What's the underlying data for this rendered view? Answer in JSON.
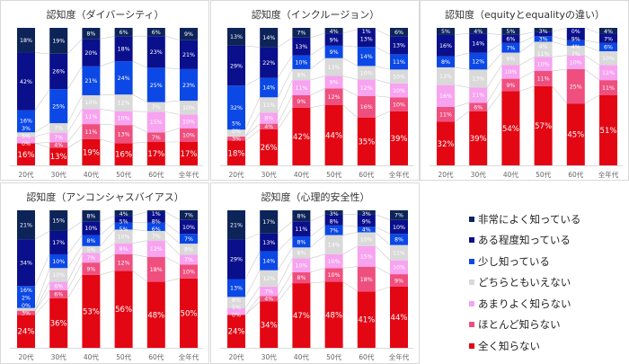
{
  "legend": [
    {
      "name": "非常によく知っている",
      "color": "#0d2459"
    },
    {
      "name": "ある程度知っている",
      "color": "#0a0f8c"
    },
    {
      "name": "少し知っている",
      "color": "#0b48e6"
    },
    {
      "name": "どちらともいえない",
      "color": "#d9d9d9"
    },
    {
      "name": "あまりよく知らない",
      "color": "#f7a3f0"
    },
    {
      "name": "ほとんど知らない",
      "color": "#ef4f7e"
    },
    {
      "name": "全く知らない",
      "color": "#e30613"
    }
  ],
  "chart_data": [
    {
      "type": "bar",
      "stacked": true,
      "title": "認知度（ダイバーシティ）",
      "categories": [
        "20代",
        "30代",
        "40代",
        "50代",
        "60代",
        "全年代"
      ],
      "series": [
        {
          "name": "全く知らない",
          "values": [
            16,
            13,
            19,
            16,
            17,
            17
          ]
        },
        {
          "name": "ほとんど知らない",
          "values": [
            0,
            4,
            11,
            13,
            7,
            10
          ]
        },
        {
          "name": "あまりよく知らない",
          "values": [
            5,
            7,
            11,
            10,
            15,
            10
          ]
        },
        {
          "name": "どちらともいえない",
          "values": [
            3,
            7,
            10,
            12,
            7,
            10
          ]
        },
        {
          "name": "少し知っている",
          "values": [
            16,
            25,
            21,
            24,
            25,
            23
          ]
        },
        {
          "name": "ある程度知っている",
          "values": [
            42,
            26,
            20,
            18,
            23,
            21
          ]
        },
        {
          "name": "非常によく知っている",
          "values": [
            18,
            19,
            8,
            6,
            6,
            9
          ]
        }
      ]
    },
    {
      "type": "bar",
      "stacked": true,
      "title": "認知度（インクルージョン）",
      "categories": [
        "20代",
        "30代",
        "40代",
        "50代",
        "60代",
        "全年代"
      ],
      "series": [
        {
          "name": "全く知らない",
          "values": [
            18,
            26,
            42,
            44,
            35,
            39
          ]
        },
        {
          "name": "ほとんど知らない",
          "values": [
            3,
            4,
            9,
            12,
            16,
            10
          ]
        },
        {
          "name": "あまりよく知らない",
          "values": [
            0,
            8,
            11,
            9,
            12,
            10
          ]
        },
        {
          "name": "どちらともいえない",
          "values": [
            5,
            11,
            8,
            13,
            10,
            10
          ]
        },
        {
          "name": "少し知っている",
          "values": [
            32,
            14,
            10,
            9,
            14,
            11
          ]
        },
        {
          "name": "ある程度知っている",
          "values": [
            29,
            22,
            13,
            9,
            13,
            13
          ]
        },
        {
          "name": "非常によく知っている",
          "values": [
            13,
            14,
            7,
            4,
            1,
            6
          ]
        }
      ]
    },
    {
      "type": "bar",
      "stacked": true,
      "title": "認知度（equityとequalityの違い）",
      "categories": [
        "20代",
        "30代",
        "40代",
        "50代",
        "60代",
        "全年代"
      ],
      "series": [
        {
          "name": "全く知らない",
          "values": [
            32,
            39,
            54,
            57,
            45,
            51
          ]
        },
        {
          "name": "ほとんど知らない",
          "values": [
            11,
            6,
            9,
            11,
            25,
            11
          ]
        },
        {
          "name": "あまりよく知らない",
          "values": [
            16,
            11,
            10,
            10,
            10,
            11
          ]
        },
        {
          "name": "どちらともいえない",
          "values": [
            13,
            13,
            9,
            11,
            7,
            10
          ]
        },
        {
          "name": "少し知っている",
          "values": [
            8,
            12,
            7,
            4,
            4,
            6
          ]
        },
        {
          "name": "ある程度知っている",
          "values": [
            16,
            14,
            6,
            3,
            9,
            7
          ]
        },
        {
          "name": "非常によく知っている",
          "values": [
            5,
            4,
            5,
            3,
            0,
            4
          ]
        }
      ]
    },
    {
      "type": "bar",
      "stacked": true,
      "title": "認知度（アンコンシャスバイアス）",
      "categories": [
        "20代",
        "30代",
        "40代",
        "50代",
        "60代",
        "全年代"
      ],
      "series": [
        {
          "name": "全く知らない",
          "values": [
            24,
            36,
            53,
            56,
            48,
            50
          ]
        },
        {
          "name": "ほとんど知らない",
          "values": [
            3,
            6,
            9,
            12,
            18,
            10
          ]
        },
        {
          "name": "あまりよく知らない",
          "values": [
            0,
            6,
            7,
            8,
            12,
            7
          ]
        },
        {
          "name": "どちらともいえない",
          "values": [
            2,
            10,
            5,
            10,
            7,
            8
          ]
        },
        {
          "name": "少し知っている",
          "values": [
            16,
            10,
            8,
            5,
            6,
            7
          ]
        },
        {
          "name": "ある程度知っている",
          "values": [
            34,
            17,
            10,
            5,
            8,
            10
          ]
        },
        {
          "name": "非常によく知っている",
          "values": [
            21,
            15,
            8,
            4,
            1,
            7
          ]
        }
      ]
    },
    {
      "type": "bar",
      "stacked": true,
      "title": "認知度（心理的安全性）",
      "categories": [
        "20代",
        "30代",
        "40代",
        "50代",
        "60代",
        "全年代"
      ],
      "series": [
        {
          "name": "全く知らない",
          "values": [
            24,
            34,
            47,
            48,
            41,
            44
          ]
        },
        {
          "name": "ほとんど知らない",
          "values": [
            0,
            4,
            8,
            10,
            18,
            9
          ]
        },
        {
          "name": "あまりよく知らない",
          "values": [
            5,
            7,
            10,
            10,
            15,
            10
          ]
        },
        {
          "name": "どちらともいえない",
          "values": [
            8,
            12,
            8,
            14,
            10,
            11
          ]
        },
        {
          "name": "少し知っている",
          "values": [
            13,
            14,
            8,
            7,
            4,
            8
          ]
        },
        {
          "name": "ある程度知っている",
          "values": [
            29,
            13,
            11,
            8,
            9,
            10
          ]
        },
        {
          "name": "非常によく知っている",
          "values": [
            21,
            17,
            8,
            3,
            3,
            7
          ]
        }
      ]
    }
  ]
}
